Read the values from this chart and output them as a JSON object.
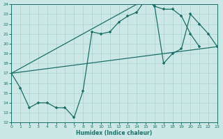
{
  "bg_color": "#cce8e6",
  "grid_color": "#a8d0ce",
  "line_color": "#1a6e68",
  "xlabel": "Humidex (Indice chaleur)",
  "xlim": [
    0,
    23
  ],
  "ylim": [
    12,
    24
  ],
  "xticks": [
    0,
    1,
    2,
    3,
    4,
    5,
    6,
    7,
    8,
    9,
    10,
    11,
    12,
    13,
    14,
    15,
    16,
    17,
    18,
    19,
    20,
    21,
    22,
    23
  ],
  "yticks": [
    12,
    13,
    14,
    15,
    16,
    17,
    18,
    19,
    20,
    21,
    22,
    23,
    24
  ],
  "series": [
    {
      "x": [
        0,
        1,
        2,
        3,
        4,
        5,
        6,
        7,
        8,
        9,
        10,
        11,
        12,
        13,
        14,
        15,
        16,
        17,
        18,
        19,
        20,
        21
      ],
      "y": [
        17,
        15.5,
        13.5,
        14.0,
        14.0,
        13.5,
        13.5,
        12.5,
        15.2,
        21.2,
        21.0,
        21.2,
        22.2,
        22.8,
        23.2,
        24.5,
        23.8,
        23.5,
        23.5,
        22.8,
        21.0,
        19.7
      ]
    },
    {
      "x": [
        0,
        23
      ],
      "y": [
        17,
        19.7
      ]
    },
    {
      "x": [
        0,
        15,
        16,
        17,
        18,
        19,
        20,
        21,
        22,
        23
      ],
      "y": [
        17,
        24.5,
        23.8,
        18.0,
        19.0,
        19.5,
        23.0,
        22.0,
        21.0,
        19.7
      ]
    }
  ]
}
